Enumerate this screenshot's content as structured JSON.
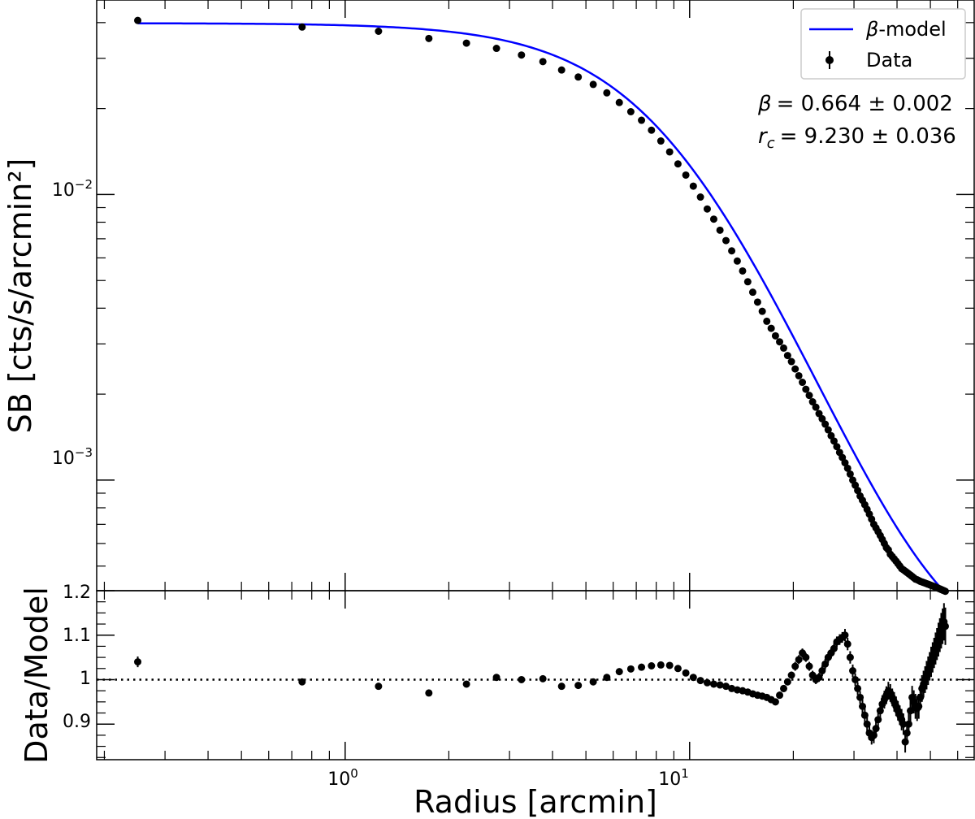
{
  "chart_data": [
    {
      "type": "scatter",
      "panel": "main",
      "xlabel": "Radius [arcmin]",
      "ylabel": "SB [cts/s/arcmin²]",
      "xscale": "log",
      "yscale": "log",
      "xlim": [
        0.19,
        67
      ],
      "ylim": [
        0.00041,
        0.048
      ],
      "x_ticks": [
        {
          "value": 1,
          "base": "10",
          "exp": "0"
        },
        {
          "value": 10,
          "base": "10",
          "exp": "1"
        }
      ],
      "y_ticks": [
        {
          "value": 0.01,
          "base": "10",
          "exp": "−2"
        },
        {
          "value": 0.001,
          "base": "10",
          "exp": "−3"
        }
      ],
      "legend": {
        "placement": "top-right",
        "entries": [
          {
            "symbol": "β",
            "label": "-model",
            "kind": "line",
            "color": "#0000ff"
          },
          {
            "label": "Data",
            "kind": "errorbar-point",
            "color": "#000000"
          }
        ]
      },
      "annotations": {
        "beta": {
          "symbol": "β",
          "eq": "= 0.664 ± 0.002"
        },
        "rc": {
          "symbol": "r",
          "sub": "c",
          "eq": "= 9.230 ± 0.036"
        }
      },
      "model": {
        "type": "beta",
        "beta": 0.664,
        "rc": 9.23,
        "s0": 0.0396,
        "bkg": 0.00022,
        "color": "#0000ff"
      },
      "series": [
        {
          "name": "Data",
          "x": [
            0.25,
            0.75,
            1.25,
            1.75,
            2.25,
            2.75,
            3.25,
            3.75,
            4.25,
            4.75,
            5.25,
            5.75,
            6.25,
            6.75,
            7.25,
            7.75,
            8.25,
            8.75,
            9.25,
            9.75,
            10.25,
            10.75,
            11.25,
            11.75,
            12.25,
            12.75,
            13.25,
            13.75,
            14.25,
            14.75,
            15.25,
            15.75,
            16.25,
            16.75,
            17.25,
            17.75,
            18.25,
            18.75,
            19.25,
            19.75,
            20.25,
            20.75,
            21.25,
            21.75,
            22.25,
            22.75,
            23.25,
            23.75,
            24.25,
            24.75,
            25.25,
            25.75,
            26.25,
            26.75,
            27.25,
            27.75,
            28.25,
            28.75,
            29.25,
            29.75,
            30.25,
            30.75,
            31.25,
            31.75,
            32.25,
            32.75,
            33.25,
            33.75,
            34.25,
            34.75,
            35.25,
            35.75,
            36.25,
            36.75,
            37.25,
            37.75,
            38.25,
            38.75,
            39.25,
            39.75,
            40.25,
            40.75,
            41.25,
            41.75,
            42.25,
            42.75,
            43.25,
            43.75,
            44.25,
            44.75,
            45.25,
            45.75,
            46.25,
            46.75,
            47.25,
            47.75,
            48.25,
            48.75,
            49.25,
            49.75,
            50.25,
            50.75,
            51.25,
            51.75,
            52.25,
            52.75,
            53.25,
            53.75,
            54.25,
            54.75,
            55.25
          ],
          "y": [
            0.0407,
            0.0386,
            0.0373,
            0.0352,
            0.0339,
            0.0325,
            0.0308,
            0.0292,
            0.0273,
            0.0258,
            0.0243,
            0.0227,
            0.021,
            0.0195,
            0.0182,
            0.0168,
            0.0154,
            0.0141,
            0.0128,
            0.0117,
            0.0107,
            0.0098,
            0.0089,
            0.0082,
            0.0075,
            0.0069,
            0.00635,
            0.00585,
            0.0054,
            0.00495,
            0.00455,
            0.0042,
            0.0039,
            0.0036,
            0.0034,
            0.0032,
            0.00305,
            0.0029,
            0.00273,
            0.0026,
            0.00245,
            0.00232,
            0.0022,
            0.00208,
            0.00198,
            0.00188,
            0.0018,
            0.00171,
            0.00164,
            0.00157,
            0.0015,
            0.00143,
            0.00137,
            0.00131,
            0.00125,
            0.0012,
            0.00115,
            0.0011,
            0.00105,
            0.001,
            0.00096,
            0.00092,
            0.00088,
            0.00085,
            0.00082,
            0.00079,
            0.00076,
            0.00073,
            0.0007,
            0.00068,
            0.00066,
            0.00064,
            0.00062,
            0.0006,
            0.00058,
            0.00057,
            0.00055,
            0.00054,
            0.00053,
            0.00052,
            0.00051,
            0.0005,
            0.00049,
            0.000485,
            0.00048,
            0.000475,
            0.00047,
            0.000465,
            0.00046,
            0.000455,
            0.00045,
            0.000448,
            0.000445,
            0.000442,
            0.00044,
            0.000438,
            0.000436,
            0.000434,
            0.000432,
            0.00043,
            0.000428,
            0.000426,
            0.000424,
            0.000422,
            0.00042,
            0.000418,
            0.000416,
            0.000414,
            0.000412,
            0.00041,
            0.000408
          ]
        }
      ]
    },
    {
      "type": "scatter",
      "panel": "ratio",
      "xlabel": "Radius [arcmin]",
      "ylabel": "Data/Model",
      "xscale": "log",
      "xlim": [
        0.19,
        67
      ],
      "ylim": [
        0.82,
        1.2
      ],
      "y_ticks": [
        0.9,
        1.0,
        1.1,
        1.2
      ],
      "reference_line": {
        "y": 1.0,
        "style": "dotted"
      },
      "series": [
        {
          "name": "Data/Model",
          "x": [
            0.25,
            0.75,
            1.25,
            1.75,
            2.25,
            2.75,
            3.25,
            3.75,
            4.25,
            4.75,
            5.25,
            5.75,
            6.25,
            6.75,
            7.25,
            7.75,
            8.25,
            8.75,
            9.25,
            9.75,
            10.25,
            10.75,
            11.25,
            11.75,
            12.25,
            12.75,
            13.25,
            13.75,
            14.25,
            14.75,
            15.25,
            15.75,
            16.25,
            16.75,
            17.25,
            17.75,
            18.25,
            18.75,
            19.25,
            19.75,
            20.25,
            20.75,
            21.25,
            21.75,
            22.25,
            22.75,
            23.25,
            23.75,
            24.25,
            24.75,
            25.25,
            25.75,
            26.25,
            26.75,
            27.25,
            27.75,
            28.25,
            28.75,
            29.25,
            29.75,
            30.25,
            30.75,
            31.25,
            31.75,
            32.25,
            32.75,
            33.25,
            33.75,
            34.25,
            34.75,
            35.25,
            35.75,
            36.25,
            36.75,
            37.25,
            37.75,
            38.25,
            38.75,
            39.25,
            39.75,
            40.25,
            40.75,
            41.25,
            41.75,
            42.25,
            42.75,
            43.25,
            43.75,
            44.25,
            44.75,
            45.25,
            45.75,
            46.25,
            46.75,
            47.25,
            47.75,
            48.25,
            48.75,
            49.25,
            49.75,
            50.25,
            50.75,
            51.25,
            51.75,
            52.25,
            52.75,
            53.25,
            53.75,
            54.25,
            54.75,
            55.25
          ],
          "y": [
            1.04,
            0.995,
            0.985,
            0.97,
            0.99,
            1.005,
            1.0,
            1.002,
            0.985,
            0.987,
            0.995,
            1.005,
            1.018,
            1.024,
            1.028,
            1.031,
            1.033,
            1.032,
            1.025,
            1.015,
            1.005,
            0.998,
            0.993,
            0.99,
            0.988,
            0.985,
            0.98,
            0.977,
            0.975,
            0.972,
            0.968,
            0.965,
            0.963,
            0.96,
            0.955,
            0.95,
            0.965,
            0.98,
            0.995,
            1.01,
            1.03,
            1.045,
            1.06,
            1.05,
            1.03,
            1.01,
            1.0,
            1.005,
            1.02,
            1.035,
            1.05,
            1.06,
            1.07,
            1.085,
            1.09,
            1.095,
            1.1,
            1.08,
            1.05,
            1.02,
            1.0,
            0.98,
            0.96,
            0.94,
            0.92,
            0.9,
            0.88,
            0.87,
            0.875,
            0.89,
            0.91,
            0.93,
            0.945,
            0.955,
            0.965,
            0.975,
            0.97,
            0.96,
            0.95,
            0.94,
            0.93,
            0.92,
            0.91,
            0.9,
            0.86,
            0.88,
            0.9,
            0.93,
            0.96,
            0.95,
            0.94,
            0.935,
            0.94,
            0.96,
            0.98,
            0.99,
            1.0,
            1.01,
            1.02,
            1.03,
            1.04,
            1.05,
            1.06,
            1.07,
            1.08,
            1.09,
            1.1,
            1.11,
            1.12,
            1.13,
            1.12
          ],
          "err": [
            0.012,
            0.006,
            0.006,
            0.006,
            0.006,
            0.006,
            0.006,
            0.006,
            0.006,
            0.006,
            0.006,
            0.006,
            0.006,
            0.006,
            0.006,
            0.006,
            0.006,
            0.006,
            0.006,
            0.006,
            0.006,
            0.006,
            0.006,
            0.006,
            0.006,
            0.006,
            0.006,
            0.006,
            0.006,
            0.006,
            0.006,
            0.006,
            0.006,
            0.006,
            0.006,
            0.006,
            0.008,
            0.008,
            0.008,
            0.008,
            0.01,
            0.01,
            0.01,
            0.01,
            0.01,
            0.01,
            0.01,
            0.01,
            0.012,
            0.012,
            0.012,
            0.012,
            0.012,
            0.012,
            0.012,
            0.012,
            0.014,
            0.014,
            0.014,
            0.014,
            0.014,
            0.014,
            0.014,
            0.016,
            0.016,
            0.016,
            0.016,
            0.016,
            0.018,
            0.018,
            0.018,
            0.018,
            0.02,
            0.02,
            0.02,
            0.02,
            0.02,
            0.02,
            0.022,
            0.022,
            0.022,
            0.022,
            0.024,
            0.024,
            0.024,
            0.024,
            0.026,
            0.026,
            0.026,
            0.026,
            0.028,
            0.028,
            0.028,
            0.028,
            0.03,
            0.03,
            0.03,
            0.032,
            0.032,
            0.032,
            0.034,
            0.034,
            0.034,
            0.036,
            0.036,
            0.038,
            0.038,
            0.04,
            0.04,
            0.042,
            0.042
          ]
        }
      ]
    }
  ]
}
